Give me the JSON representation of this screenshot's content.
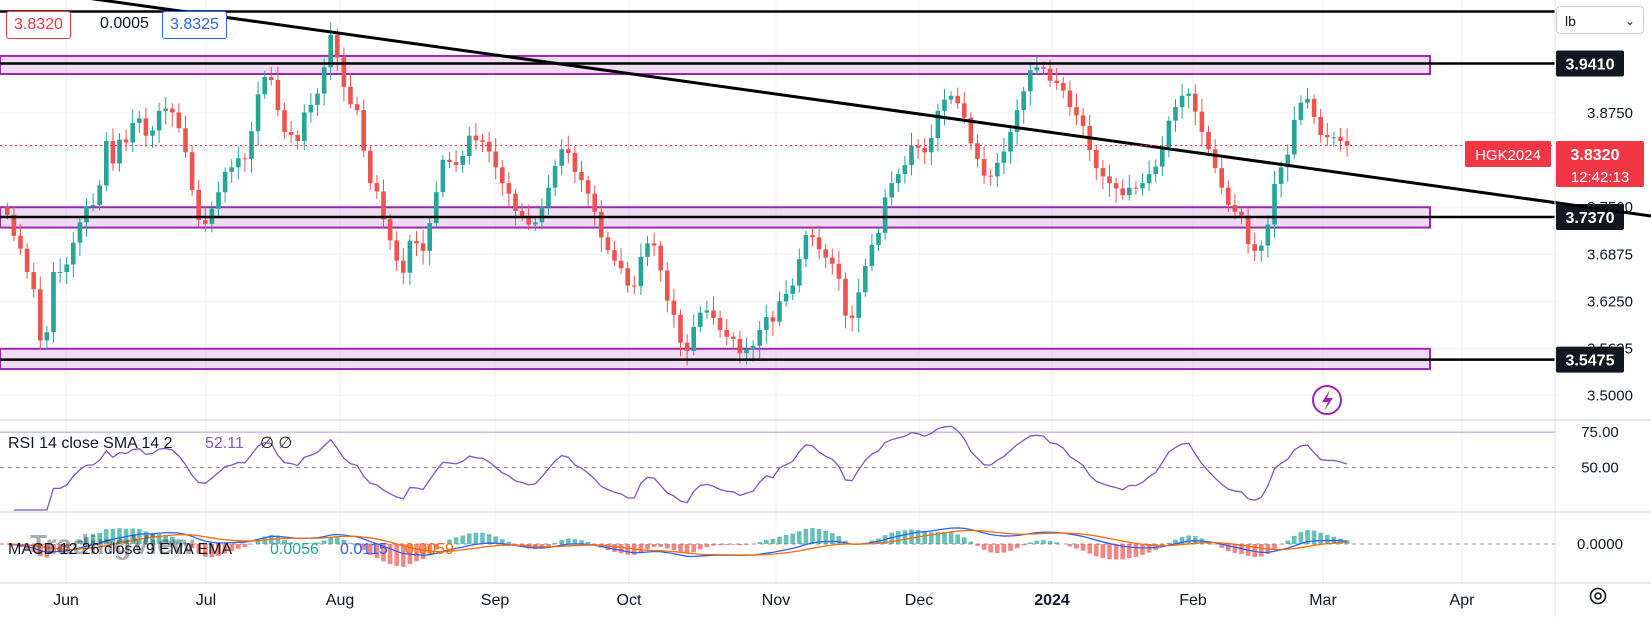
{
  "header": {
    "bid_price": "3.8320",
    "spread": "0.0005",
    "ask_price": "3.8325"
  },
  "unit_selector": {
    "value": "lb"
  },
  "symbol_label": {
    "symbol": "HGK2024",
    "price": "3.8320",
    "countdown": "12:42:13"
  },
  "watermark": "TradingView",
  "colors": {
    "up": "#26a69a",
    "down": "#ef5350",
    "zone_fill": "#e1bee7",
    "zone_border": "#9c27b0",
    "trendline": "#000000",
    "rsi": "#7e57c2",
    "macd": "#2962ff",
    "signal": "#ff6d00",
    "price_badge": "#f23645"
  },
  "chart_data": [
    {
      "type": "candlestick",
      "x_ticks": [
        "Jun",
        "Jul",
        "Aug",
        "Sep",
        "Oct",
        "Nov",
        "Dec",
        "2024",
        "Feb",
        "Mar",
        "Apr"
      ],
      "y_ticks": [
        "3.8750",
        "3.7500",
        "3.6875",
        "3.6250",
        "3.5625",
        "3.5000"
      ],
      "ylim": [
        3.47,
        4.02
      ],
      "horizontal_levels": [
        {
          "value": 4.01,
          "label": ""
        },
        {
          "value": 3.941,
          "label": "3.9410"
        },
        {
          "value": 3.737,
          "label": "3.7370"
        },
        {
          "value": 3.5475,
          "label": "3.5475"
        }
      ],
      "zones": [
        {
          "from": 3.927,
          "to": 3.951
        },
        {
          "from": 3.723,
          "to": 3.75
        },
        {
          "from": 3.535,
          "to": 3.562
        }
      ],
      "trendline": {
        "start": [
          -30,
          4.08
        ],
        "end": [
          348,
          3.618
        ]
      },
      "anchor_close": 3.832,
      "closes": [
        3.74,
        3.712,
        3.695,
        3.664,
        3.641,
        3.573,
        3.584,
        3.664,
        3.664,
        3.674,
        3.703,
        3.73,
        3.751,
        3.753,
        3.779,
        3.838,
        3.808,
        3.84,
        3.836,
        3.862,
        3.868,
        3.845,
        3.852,
        3.878,
        3.881,
        3.876,
        3.855,
        3.823,
        3.773,
        3.733,
        3.728,
        3.748,
        3.77,
        3.797,
        3.803,
        3.815,
        3.814,
        3.851,
        3.9,
        3.923,
        3.919,
        3.879,
        3.85,
        3.846,
        3.838,
        3.876,
        3.886,
        3.901,
        3.936,
        3.979,
        3.949,
        3.91,
        3.887,
        3.879,
        3.825,
        3.782,
        3.771,
        3.734,
        3.706,
        3.679,
        3.663,
        3.705,
        3.702,
        3.692,
        3.729,
        3.77,
        3.813,
        3.81,
        3.806,
        3.818,
        3.845,
        3.839,
        3.837,
        3.824,
        3.803,
        3.782,
        3.768,
        3.745,
        3.738,
        3.727,
        3.73,
        3.75,
        3.776,
        3.805,
        3.827,
        3.822,
        3.797,
        3.786,
        3.768,
        3.744,
        3.71,
        3.693,
        3.679,
        3.669,
        3.646,
        3.645,
        3.684,
        3.702,
        3.699,
        3.666,
        3.626,
        3.607,
        3.57,
        3.559,
        3.591,
        3.61,
        3.613,
        3.603,
        3.587,
        3.578,
        3.575,
        3.556,
        3.561,
        3.566,
        3.587,
        3.604,
        3.598,
        3.625,
        3.635,
        3.646,
        3.681,
        3.713,
        3.71,
        3.694,
        3.683,
        3.675,
        3.655,
        3.606,
        3.603,
        3.637,
        3.672,
        3.7,
        3.716,
        3.763,
        3.782,
        3.794,
        3.806,
        3.832,
        3.829,
        3.823,
        3.842,
        3.878,
        3.893,
        3.898,
        3.888,
        3.869,
        3.835,
        3.814,
        3.792,
        3.791,
        3.809,
        3.824,
        3.85,
        3.879,
        3.904,
        3.932,
        3.936,
        3.934,
        3.918,
        3.915,
        3.905,
        3.883,
        3.872,
        3.858,
        3.826,
        3.802,
        3.791,
        3.782,
        3.775,
        3.766,
        3.776,
        3.775,
        3.782,
        3.794,
        3.804,
        3.83,
        3.865,
        3.883,
        3.898,
        3.901,
        3.877,
        3.85,
        3.827,
        3.802,
        3.776,
        3.753,
        3.744,
        3.739,
        3.701,
        3.692,
        3.699,
        3.727,
        3.781,
        3.803,
        3.82,
        3.866,
        3.889,
        3.894,
        3.87,
        3.846,
        3.843,
        3.843,
        3.838,
        3.832
      ]
    },
    {
      "type": "line",
      "name": "RSI 14 close SMA 14 2",
      "title": "RSI 14 close SMA 14 2",
      "last_value": "52.11",
      "flags": "∅ ∅",
      "y_ticks": [
        "75.00",
        "50.00"
      ],
      "ylim": [
        20,
        80
      ]
    },
    {
      "type": "bar",
      "name": "MACD 12 26 close 9 EMA EMA",
      "title": "MACD 12 26 close 9 EMA EMA",
      "values_label": [
        "0.0056",
        "0.0115",
        "0.0059"
      ],
      "y_ticks": [
        "0.0000"
      ]
    }
  ]
}
